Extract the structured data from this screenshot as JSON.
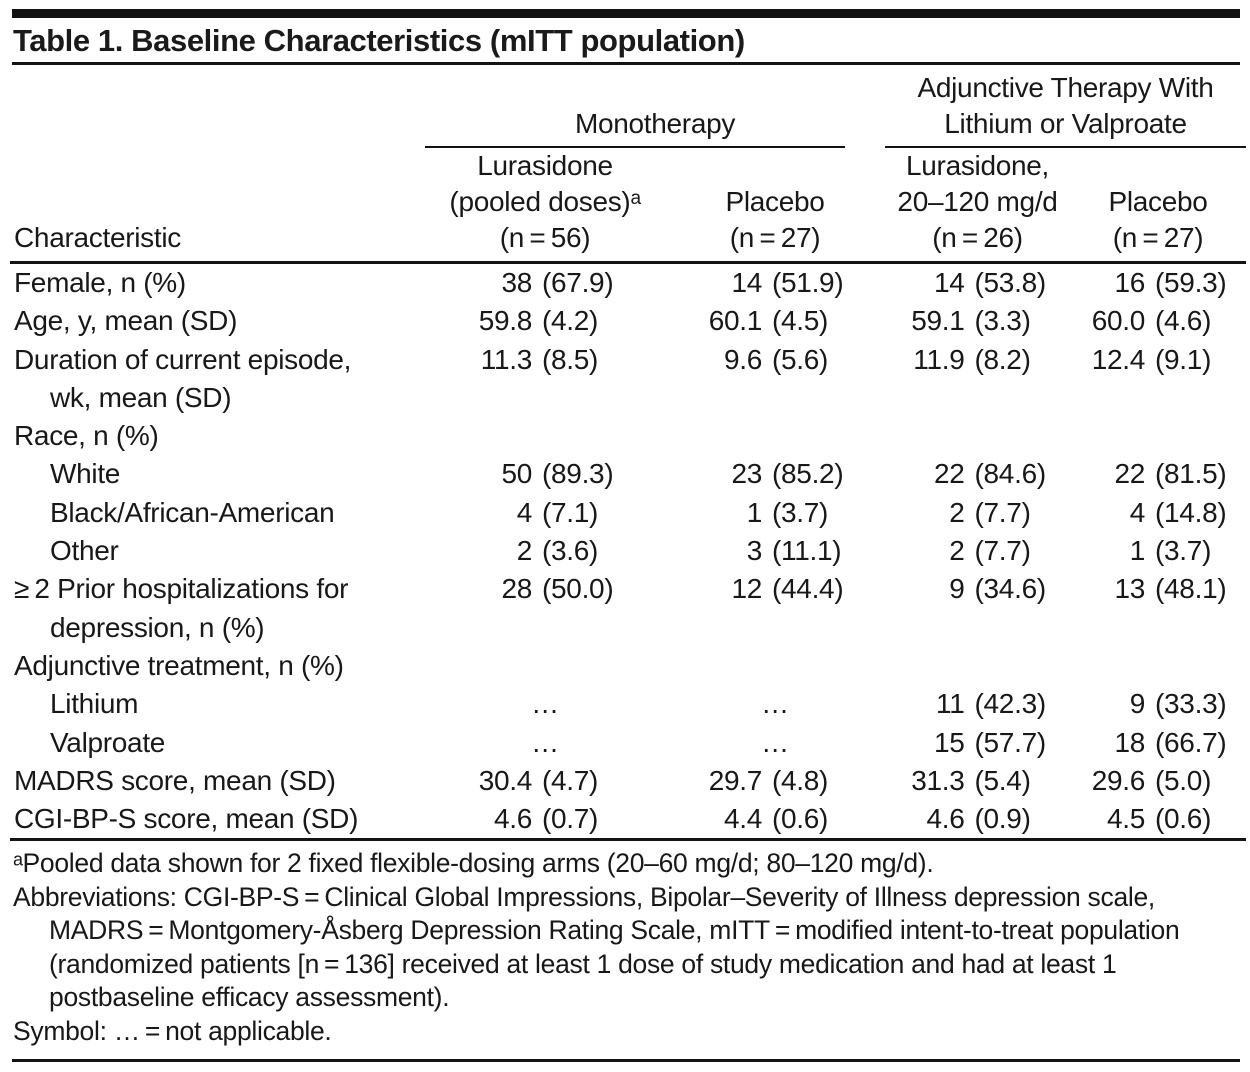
{
  "title": "Table 1. Baseline Characteristics (mITT population)",
  "header": {
    "characteristic_label": "Characteristic",
    "groups": [
      {
        "lines": [
          "Monotherapy"
        ]
      },
      {
        "lines": [
          "Adjunctive Therapy With",
          "Lithium or Valproate"
        ]
      }
    ],
    "columns": [
      {
        "lines": [
          "Lurasidone",
          "(pooled doses)ᵃ",
          "(n = 56)"
        ]
      },
      {
        "lines": [
          "Placebo",
          "(n = 27)"
        ]
      },
      {
        "lines": [
          "Lurasidone,",
          "20–120 mg/d",
          "(n = 26)"
        ]
      },
      {
        "lines": [
          "Placebo",
          "(n = 27)"
        ]
      }
    ]
  },
  "rows": [
    {
      "label": [
        "Female, n (%)"
      ],
      "indent": false,
      "values": [
        [
          "38",
          "(67.9)"
        ],
        [
          "14",
          "(51.9)"
        ],
        [
          "14",
          "(53.8)"
        ],
        [
          "16",
          "(59.3)"
        ]
      ]
    },
    {
      "label": [
        "Age, y, mean (SD)"
      ],
      "indent": false,
      "values": [
        [
          "59.8",
          "(4.2)"
        ],
        [
          "60.1",
          "(4.5)"
        ],
        [
          "59.1",
          "(3.3)"
        ],
        [
          "60.0",
          "(4.6)"
        ]
      ]
    },
    {
      "label": [
        "Duration of current episode,",
        "wk, mean (SD)"
      ],
      "indent": false,
      "values": [
        [
          "11.3",
          "(8.5)"
        ],
        [
          "9.6",
          "(5.6)"
        ],
        [
          "11.9",
          "(8.2)"
        ],
        [
          "12.4",
          "(9.1)"
        ]
      ]
    },
    {
      "label": [
        "Race, n (%)"
      ],
      "indent": false,
      "values": null
    },
    {
      "label": [
        "White"
      ],
      "indent": true,
      "values": [
        [
          "50",
          "(89.3)"
        ],
        [
          "23",
          "(85.2)"
        ],
        [
          "22",
          "(84.6)"
        ],
        [
          "22",
          "(81.5)"
        ]
      ]
    },
    {
      "label": [
        "Black/African-American"
      ],
      "indent": true,
      "values": [
        [
          "4",
          "(7.1)"
        ],
        [
          "1",
          "(3.7)"
        ],
        [
          "2",
          "(7.7)"
        ],
        [
          "4",
          "(14.8)"
        ]
      ]
    },
    {
      "label": [
        "Other"
      ],
      "indent": true,
      "values": [
        [
          "2",
          "(3.6)"
        ],
        [
          "3",
          "(11.1)"
        ],
        [
          "2",
          "(7.7)"
        ],
        [
          "1",
          "(3.7)"
        ]
      ]
    },
    {
      "label": [
        "≥ 2 Prior hospitalizations for",
        "depression, n (%)"
      ],
      "indent": false,
      "values": [
        [
          "28",
          "(50.0)"
        ],
        [
          "12",
          "(44.4)"
        ],
        [
          "9",
          "(34.6)"
        ],
        [
          "13",
          "(48.1)"
        ]
      ]
    },
    {
      "label": [
        "Adjunctive treatment, n (%)"
      ],
      "indent": false,
      "values": null
    },
    {
      "label": [
        "Lithium"
      ],
      "indent": true,
      "values": [
        [
          "…",
          ""
        ],
        [
          "…",
          ""
        ],
        [
          "11",
          "(42.3)"
        ],
        [
          "9",
          "(33.3)"
        ]
      ]
    },
    {
      "label": [
        "Valproate"
      ],
      "indent": true,
      "values": [
        [
          "…",
          ""
        ],
        [
          "…",
          ""
        ],
        [
          "15",
          "(57.7)"
        ],
        [
          "18",
          "(66.7)"
        ]
      ]
    },
    {
      "label": [
        "MADRS score, mean (SD)"
      ],
      "indent": false,
      "values": [
        [
          "30.4",
          "(4.7)"
        ],
        [
          "29.7",
          "(4.8)"
        ],
        [
          "31.3",
          "(5.4)"
        ],
        [
          "29.6",
          "(5.0)"
        ]
      ]
    },
    {
      "label": [
        "CGI-BP-S score, mean (SD)"
      ],
      "indent": false,
      "values": [
        [
          "4.6",
          "(0.7)"
        ],
        [
          "4.4",
          "(0.6)"
        ],
        [
          "4.6",
          "(0.9)"
        ],
        [
          "4.5",
          "(0.6)"
        ]
      ]
    }
  ],
  "footnotes": [
    "ᵃPooled data shown for 2 fixed flexible-dosing arms (20–60 mg/d; 80–120 mg/d).",
    "Abbreviations: CGI-BP-S = Clinical Global Impressions, Bipolar–Severity of Illness depression scale, MADRS = Montgomery-Åsberg Depression Rating Scale, mITT = modified intent-to-treat population (randomized patients [n = 136] received at least 1 dose of study medication and had at least 1 postbaseline efficacy assessment).",
    "Symbol: … = not applicable."
  ]
}
